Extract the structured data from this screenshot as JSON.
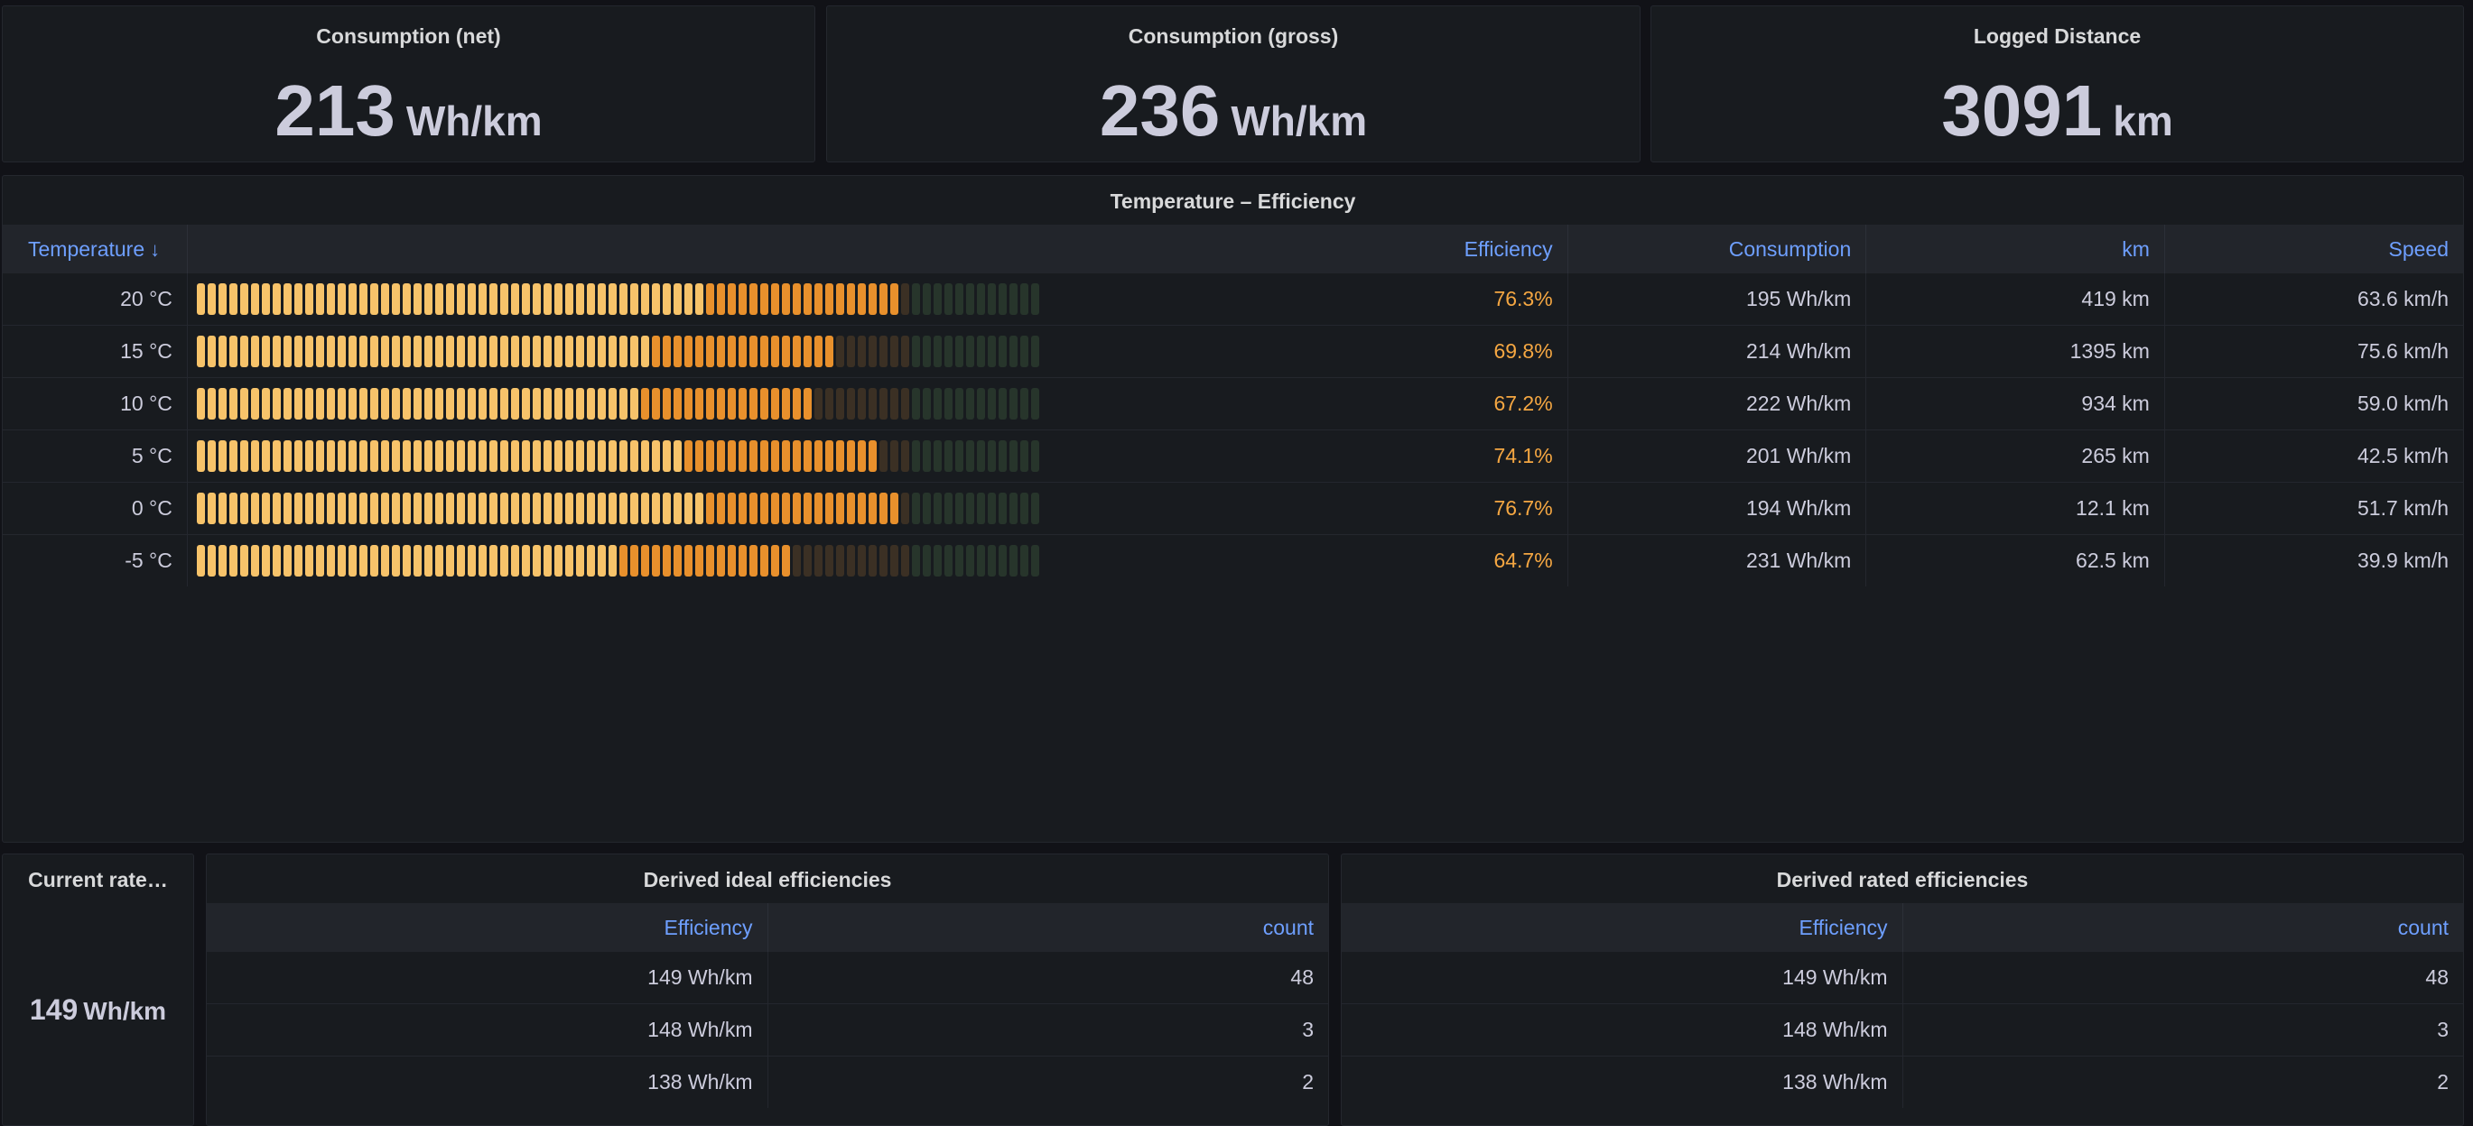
{
  "stats": [
    {
      "title": "Consumption (net)",
      "value": "213",
      "unit": "Wh/km"
    },
    {
      "title": "Consumption (gross)",
      "value": "236",
      "unit": "Wh/km"
    },
    {
      "title": "Logged Distance",
      "value": "3091",
      "unit": "km"
    }
  ],
  "temp_panel": {
    "title": "Temperature – Efficiency",
    "headers": {
      "temperature": "Temperature",
      "sort_icon": "↓",
      "efficiency": "Efficiency",
      "consumption": "Consumption",
      "km": "km",
      "speed": "Speed"
    },
    "rows": [
      {
        "temperature": "20 °C",
        "efficiency": "76.3%",
        "eff_fraction": 0.763,
        "consumption": "195 Wh/km",
        "km": "419 km",
        "speed": "63.6 km/h"
      },
      {
        "temperature": "15 °C",
        "efficiency": "69.8%",
        "eff_fraction": 0.698,
        "consumption": "214 Wh/km",
        "km": "1395 km",
        "speed": "75.6 km/h"
      },
      {
        "temperature": "10 °C",
        "efficiency": "67.2%",
        "eff_fraction": 0.672,
        "consumption": "222 Wh/km",
        "km": "934 km",
        "speed": "59.0 km/h"
      },
      {
        "temperature": "5 °C",
        "efficiency": "74.1%",
        "eff_fraction": 0.741,
        "consumption": "201 Wh/km",
        "km": "265 km",
        "speed": "42.5 km/h"
      },
      {
        "temperature": "0 °C",
        "efficiency": "76.7%",
        "eff_fraction": 0.767,
        "consumption": "194 Wh/km",
        "km": "12.1 km",
        "speed": "51.7 km/h"
      },
      {
        "temperature": "-5 °C",
        "efficiency": "64.7%",
        "eff_fraction": 0.647,
        "consumption": "231 Wh/km",
        "km": "62.5 km",
        "speed": "39.9 km/h"
      }
    ],
    "gauge": {
      "max_percent": 100,
      "threshold_percent": 86,
      "colors": {
        "light": "#f7c36a",
        "dark": "#e8902c",
        "unfilled_orange": "#3b3024",
        "unfilled_green": "#27352b"
      }
    }
  },
  "current_rate": {
    "title": "Current rate…",
    "value": "149",
    "unit": "Wh/km"
  },
  "derived_ideal": {
    "title": "Derived ideal efficiencies",
    "headers": {
      "efficiency": "Efficiency",
      "count": "count"
    },
    "rows": [
      {
        "efficiency": "149 Wh/km",
        "count": "48"
      },
      {
        "efficiency": "148 Wh/km",
        "count": "3"
      },
      {
        "efficiency": "138 Wh/km",
        "count": "2"
      }
    ]
  },
  "derived_rated": {
    "title": "Derived rated efficiencies",
    "headers": {
      "efficiency": "Efficiency",
      "count": "count"
    },
    "rows": [
      {
        "efficiency": "149 Wh/km",
        "count": "48"
      },
      {
        "efficiency": "148 Wh/km",
        "count": "3"
      },
      {
        "efficiency": "138 Wh/km",
        "count": "2"
      }
    ]
  }
}
